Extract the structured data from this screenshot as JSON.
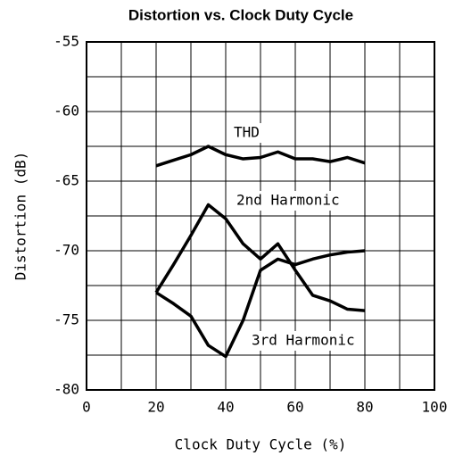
{
  "chart_data": {
    "type": "line",
    "title": "Distortion vs. Clock Duty Cycle",
    "x_label": "Clock Duty Cycle (%)",
    "y_label": "Distortion (dB)",
    "x": [
      20,
      25,
      30,
      35,
      40,
      45,
      50,
      55,
      60,
      65,
      70,
      75,
      80
    ],
    "series": [
      {
        "name": "THD",
        "color": "#000000",
        "values": [
          -63.9,
          -63.5,
          -63.1,
          -62.5,
          -63.1,
          -63.4,
          -63.3,
          -62.9,
          -63.4,
          -63.4,
          -63.6,
          -63.3,
          -63.7
        ]
      },
      {
        "name": "2nd Harmonic",
        "color": "#000000",
        "values": [
          -73,
          -73.8,
          -74.7,
          -76.8,
          -77.6,
          -75,
          -71.4,
          -70.6,
          -71,
          -70.6,
          -70.3,
          -70.1,
          -70
        ]
      },
      {
        "name": "3rd Harmonic",
        "color": "#000000",
        "values": [
          -73,
          -71,
          -68.9,
          -66.7,
          -67.7,
          -69.5,
          -70.6,
          -69.5,
          -71.4,
          -73.2,
          -73.6,
          -74.2,
          -74.3
        ]
      }
    ],
    "xlim": [
      0,
      100
    ],
    "xticks": [
      0,
      20,
      40,
      60,
      80,
      100
    ],
    "xminorticks": [
      10,
      30,
      50,
      70,
      90
    ],
    "ylim": [
      -80,
      -55
    ],
    "yticks": [
      -55,
      -60,
      -65,
      -70,
      -75,
      -80
    ],
    "yminorticks": [
      -57.5,
      -62.5,
      -67.5,
      -72.5,
      -77.5
    ],
    "grid": true
  }
}
